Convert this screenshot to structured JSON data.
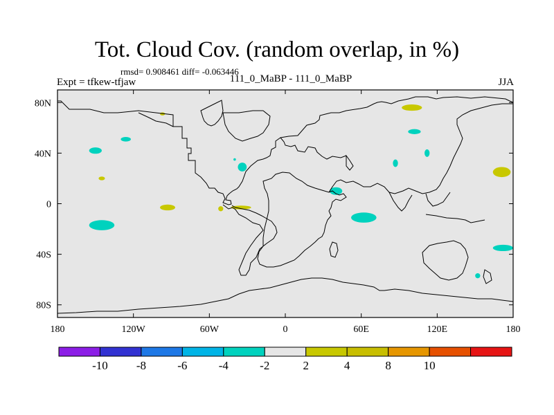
{
  "title": "Tot. Cloud Cov. (random overlap, in %)",
  "stats": "rmsd= 0.908461 diff= -0.063446",
  "experiment": "Expt = tfkew-tfjaw",
  "run": "111_0_MaBP - 111_0_MaBP",
  "season": "JJA",
  "map": {
    "lon_range": [
      -180,
      180
    ],
    "lat_range": [
      -90,
      90
    ],
    "background_color": "#e6e6e6",
    "x_ticks": [
      {
        "value": -180,
        "label": "180"
      },
      {
        "value": -120,
        "label": "120W"
      },
      {
        "value": -60,
        "label": "60W"
      },
      {
        "value": 0,
        "label": "0"
      },
      {
        "value": 60,
        "label": "60E"
      },
      {
        "value": 120,
        "label": "120E"
      },
      {
        "value": 180,
        "label": "180"
      }
    ],
    "y_ticks": [
      {
        "value": 80,
        "label": "80N"
      },
      {
        "value": 40,
        "label": "40N"
      },
      {
        "value": 0,
        "label": "0"
      },
      {
        "value": -40,
        "label": "40S"
      },
      {
        "value": -80,
        "label": "80S"
      }
    ],
    "anomalies": [
      {
        "lon": -150,
        "lat": 42,
        "rx": 5,
        "ry": 2.5,
        "color": "#00d2be"
      },
      {
        "lon": -126,
        "lat": 51,
        "rx": 4,
        "ry": 1.8,
        "color": "#00d2be"
      },
      {
        "lon": -145,
        "lat": 20,
        "rx": 2.5,
        "ry": 1.5,
        "color": "#c8c800"
      },
      {
        "lon": -145,
        "lat": -17,
        "rx": 10,
        "ry": 4,
        "color": "#00d2be"
      },
      {
        "lon": -93,
        "lat": -3,
        "rx": 6,
        "ry": 2.3,
        "color": "#c8c800"
      },
      {
        "lon": -35,
        "lat": -3,
        "rx": 8,
        "ry": 1.5,
        "color": "#c8c800"
      },
      {
        "lon": -51,
        "lat": -4,
        "rx": 2,
        "ry": 2,
        "color": "#c8c800"
      },
      {
        "lon": -34,
        "lat": 29,
        "rx": 3.5,
        "ry": 3.5,
        "color": "#00d2be"
      },
      {
        "lon": 40,
        "lat": 10,
        "rx": 5,
        "ry": 3,
        "color": "#00d2be"
      },
      {
        "lon": 62,
        "lat": -11,
        "rx": 10,
        "ry": 4,
        "color": "#00d2be"
      },
      {
        "lon": 87,
        "lat": 32,
        "rx": 2,
        "ry": 3,
        "color": "#00d2be"
      },
      {
        "lon": 112,
        "lat": 40,
        "rx": 2,
        "ry": 3,
        "color": "#00d2be"
      },
      {
        "lon": 102,
        "lat": 57,
        "rx": 5,
        "ry": 2,
        "color": "#00d2be"
      },
      {
        "lon": 100,
        "lat": 76,
        "rx": 8,
        "ry": 2.5,
        "color": "#c8c800"
      },
      {
        "lon": 171,
        "lat": 25,
        "rx": 7,
        "ry": 4,
        "color": "#c8c800"
      },
      {
        "lon": 172,
        "lat": -35,
        "rx": 8,
        "ry": 2.5,
        "color": "#00d2be"
      },
      {
        "lon": 152,
        "lat": -57,
        "rx": 2,
        "ry": 2,
        "color": "#00d2be"
      },
      {
        "lon": -40,
        "lat": 35,
        "rx": 1,
        "ry": 1,
        "color": "#00d2be"
      },
      {
        "lon": -97,
        "lat": 71,
        "rx": 2,
        "ry": 1.2,
        "color": "#c8c800"
      }
    ]
  },
  "colorbar": {
    "colors": [
      "#8c1ee6",
      "#3232d2",
      "#1e78e6",
      "#00b4e6",
      "#00d2be",
      "#e6e6e6",
      "#c8c800",
      "#c8be00",
      "#e69600",
      "#e65000",
      "#e61414"
    ],
    "labels": [
      {
        "boundary": 1,
        "text": "-10"
      },
      {
        "boundary": 2,
        "text": "-8"
      },
      {
        "boundary": 3,
        "text": "-6"
      },
      {
        "boundary": 4,
        "text": "-4"
      },
      {
        "boundary": 5,
        "text": "-2"
      },
      {
        "boundary": 6,
        "text": "2"
      },
      {
        "boundary": 7,
        "text": "4"
      },
      {
        "boundary": 8,
        "text": "8"
      },
      {
        "boundary": 9,
        "text": "10"
      }
    ]
  }
}
